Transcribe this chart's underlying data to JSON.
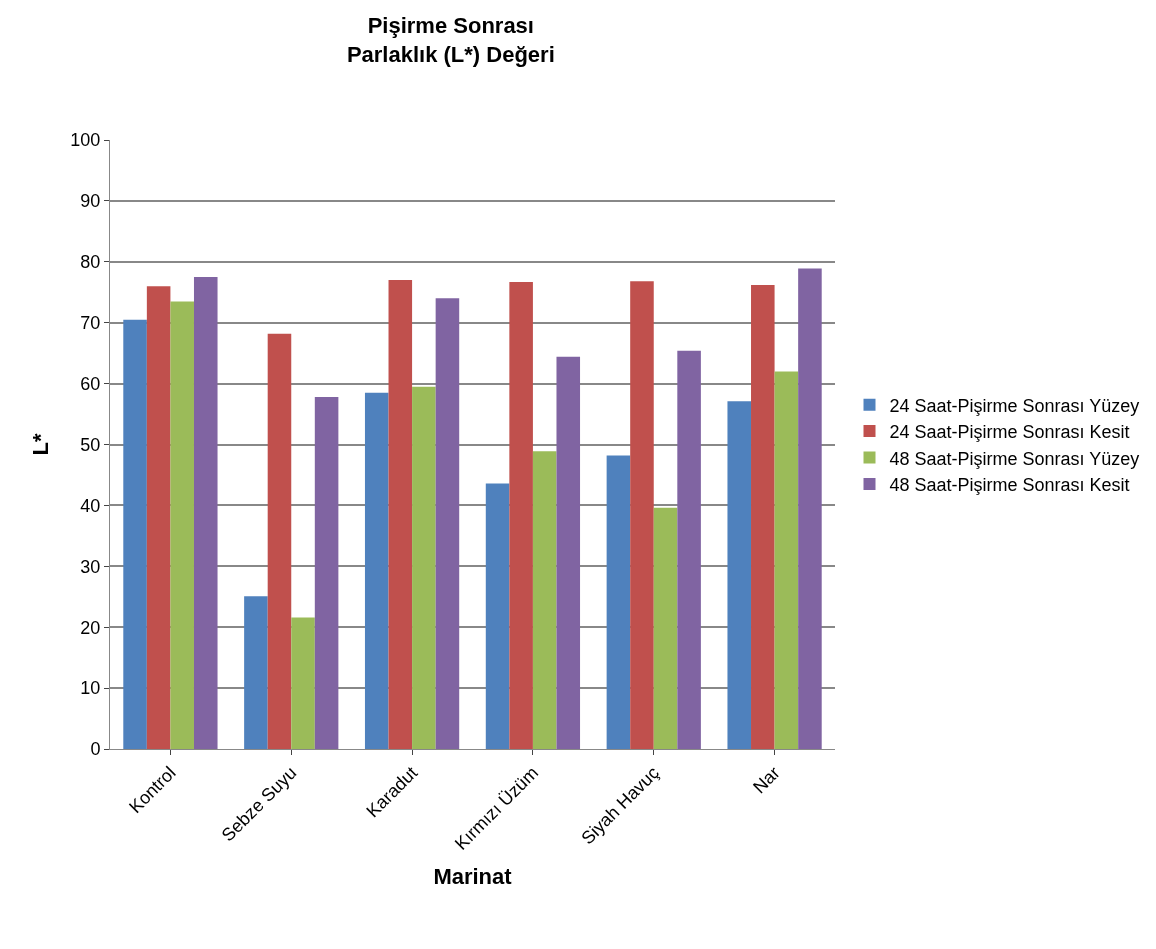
{
  "chart_data": {
    "type": "bar",
    "title": "Pişirme Sonrası\nParlaklık (L*) Değeri",
    "xlabel": "Marinat",
    "ylabel": "L*",
    "categories": [
      "Kontrol",
      "Sebze Suyu",
      "Karadut",
      "Kırmızı Üzüm",
      "Siyah Havuç",
      "Nar"
    ],
    "series": [
      {
        "name": "24 Saat-Pişirme Sonrası Yüzey",
        "color": "#4f81bd",
        "values": [
          70.5,
          25.1,
          58.5,
          43.6,
          48.2,
          57.1
        ]
      },
      {
        "name": "24 Saat-Pişirme Sonrası Kesit",
        "color": "#c0504d",
        "values": [
          76,
          68.2,
          77,
          76.7,
          76.8,
          76.2
        ]
      },
      {
        "name": "48 Saat-Pişirme Sonrası Yüzey",
        "color": "#9bbb59",
        "values": [
          73.5,
          21.6,
          59.5,
          48.9,
          39.6,
          62
        ]
      },
      {
        "name": "48 Saat-Pişirme Sonrası Kesit",
        "color": "#8064a2",
        "values": [
          77.5,
          57.8,
          74,
          64.4,
          65.4,
          78.9
        ]
      }
    ],
    "ylim": [
      0,
      100
    ],
    "yticks": [
      0,
      10,
      20,
      30,
      40,
      50,
      60,
      70,
      80,
      90,
      100
    ],
    "grid": "y",
    "legend": "right"
  }
}
